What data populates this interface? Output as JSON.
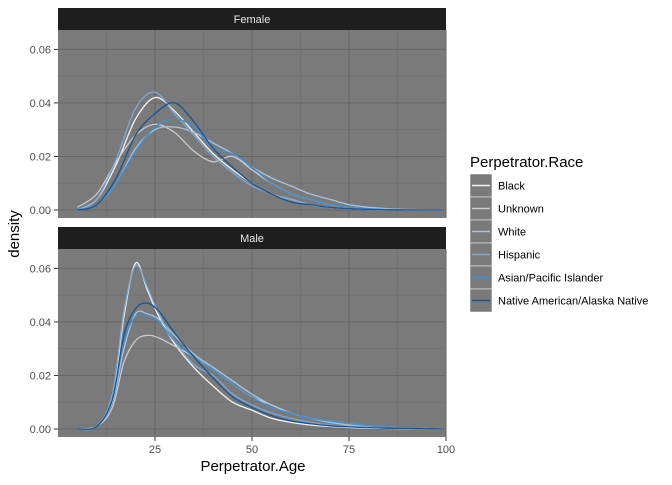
{
  "chart_data": {
    "type": "line",
    "title": "",
    "xlabel": "Perpetrator.Age",
    "ylabel": "density",
    "xlim": [
      0,
      100
    ],
    "ylim": [
      0,
      0.065
    ],
    "x_ticks": [
      25,
      50,
      75,
      100
    ],
    "y_ticks": [
      0.0,
      0.02,
      0.04,
      0.06
    ],
    "y_tick_labels": [
      "0.00",
      "0.02",
      "0.04",
      "0.06"
    ],
    "grid": true,
    "legend": {
      "title": "Perpetrator.Race",
      "position": "right"
    },
    "panel_labels": [
      "Female",
      "Male"
    ],
    "colors": {
      "Black": "#f2f2f2",
      "Unknown": "#c9c9d3",
      "White": "#a9c4e0",
      "Hispanic": "#7aaad8",
      "Asian/Pacific Islander": "#3f8fd3",
      "Native American/Alaska Native": "#1a5591"
    },
    "panels": [
      {
        "label": "Female",
        "x": [
          5,
          10,
          15,
          20,
          25,
          30,
          35,
          40,
          45,
          50,
          55,
          60,
          65,
          70,
          75,
          80,
          85,
          90,
          95,
          99
        ],
        "series": [
          {
            "name": "Black",
            "values": [
              0.0,
              0.004,
              0.017,
              0.034,
              0.042,
              0.037,
              0.029,
              0.021,
              0.015,
              0.01,
              0.006,
              0.004,
              0.002,
              0.001,
              0.0005,
              0.0002,
              0.0001,
              0.0,
              0.0,
              0.0
            ]
          },
          {
            "name": "Unknown",
            "values": [
              0.001,
              0.006,
              0.018,
              0.028,
              0.032,
              0.029,
              0.022,
              0.018,
              0.02,
              0.015,
              0.01,
              0.006,
              0.004,
              0.002,
              0.001,
              0.0005,
              0.0002,
              0.0001,
              0.0,
              0.0
            ]
          },
          {
            "name": "White",
            "values": [
              0.0,
              0.002,
              0.01,
              0.023,
              0.03,
              0.031,
              0.029,
              0.025,
              0.021,
              0.016,
              0.012,
              0.009,
              0.006,
              0.004,
              0.002,
              0.001,
              0.0005,
              0.0002,
              0.0001,
              0.0
            ]
          },
          {
            "name": "Hispanic",
            "values": [
              0.0,
              0.004,
              0.019,
              0.038,
              0.044,
              0.036,
              0.028,
              0.02,
              0.014,
              0.009,
              0.006,
              0.004,
              0.002,
              0.001,
              0.0005,
              0.0002,
              0.0001,
              0.0,
              0.0,
              0.0
            ]
          },
          {
            "name": "Asian/Pacific Islander",
            "values": [
              0.0,
              0.002,
              0.01,
              0.022,
              0.031,
              0.034,
              0.031,
              0.023,
              0.021,
              0.016,
              0.01,
              0.006,
              0.004,
              0.002,
              0.001,
              0.0005,
              0.0002,
              0.0001,
              0.0,
              0.0
            ]
          },
          {
            "name": "Native American/Alaska Native",
            "values": [
              0.0,
              0.002,
              0.012,
              0.028,
              0.036,
              0.04,
              0.033,
              0.023,
              0.016,
              0.01,
              0.006,
              0.003,
              0.002,
              0.001,
              0.0005,
              0.0002,
              0.0001,
              0.0,
              0.0,
              0.0
            ]
          }
        ]
      },
      {
        "label": "Male",
        "x": [
          5,
          10,
          14,
          17,
          20,
          23,
          26,
          30,
          35,
          40,
          45,
          50,
          55,
          60,
          65,
          70,
          75,
          80,
          85,
          90,
          95,
          99
        ],
        "series": [
          {
            "name": "Black",
            "values": [
              0.0,
              0.001,
              0.012,
              0.042,
              0.062,
              0.052,
              0.042,
              0.032,
              0.023,
              0.016,
              0.01,
              0.007,
              0.004,
              0.0025,
              0.0015,
              0.001,
              0.0005,
              0.0003,
              0.0002,
              0.0001,
              0.0,
              0.0
            ]
          },
          {
            "name": "Unknown",
            "values": [
              0.0,
              0.001,
              0.008,
              0.025,
              0.033,
              0.035,
              0.034,
              0.031,
              0.027,
              0.022,
              0.017,
              0.012,
              0.009,
              0.006,
              0.004,
              0.003,
              0.002,
              0.0012,
              0.0007,
              0.0004,
              0.0002,
              0.0
            ]
          },
          {
            "name": "White",
            "values": [
              0.0,
              0.001,
              0.01,
              0.03,
              0.043,
              0.043,
              0.041,
              0.035,
              0.028,
              0.023,
              0.018,
              0.013,
              0.009,
              0.006,
              0.004,
              0.0025,
              0.0015,
              0.001,
              0.0005,
              0.0003,
              0.0001,
              0.0
            ]
          },
          {
            "name": "Hispanic",
            "values": [
              0.0,
              0.001,
              0.013,
              0.044,
              0.061,
              0.053,
              0.043,
              0.033,
              0.024,
              0.02,
              0.013,
              0.009,
              0.006,
              0.004,
              0.0025,
              0.0015,
              0.001,
              0.0006,
              0.0003,
              0.0002,
              0.0001,
              0.0
            ]
          },
          {
            "name": "Asian/Pacific Islander",
            "values": [
              0.0,
              0.001,
              0.011,
              0.033,
              0.042,
              0.042,
              0.04,
              0.033,
              0.027,
              0.022,
              0.017,
              0.012,
              0.008,
              0.006,
              0.004,
              0.003,
              0.002,
              0.0012,
              0.0007,
              0.0004,
              0.0002,
              0.0
            ]
          },
          {
            "name": "Native American/Alaska Native",
            "values": [
              0.0,
              0.001,
              0.011,
              0.035,
              0.045,
              0.047,
              0.044,
              0.036,
              0.027,
              0.019,
              0.012,
              0.008,
              0.005,
              0.003,
              0.002,
              0.0012,
              0.0008,
              0.0005,
              0.0003,
              0.0002,
              0.0001,
              0.0
            ]
          }
        ]
      }
    ]
  }
}
